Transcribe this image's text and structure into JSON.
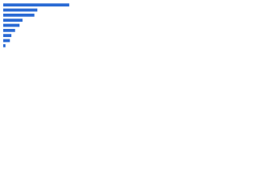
{
  "chart_data": {
    "type": "bar",
    "orientation": "horizontal",
    "categories": [
      null,
      null,
      null,
      null,
      null,
      null,
      null,
      null,
      null
    ],
    "values": [
      89,
      46,
      42,
      26,
      22,
      16,
      11,
      9,
      3
    ],
    "color": "#2a6ad4",
    "xlim": [
      0,
      100
    ]
  }
}
